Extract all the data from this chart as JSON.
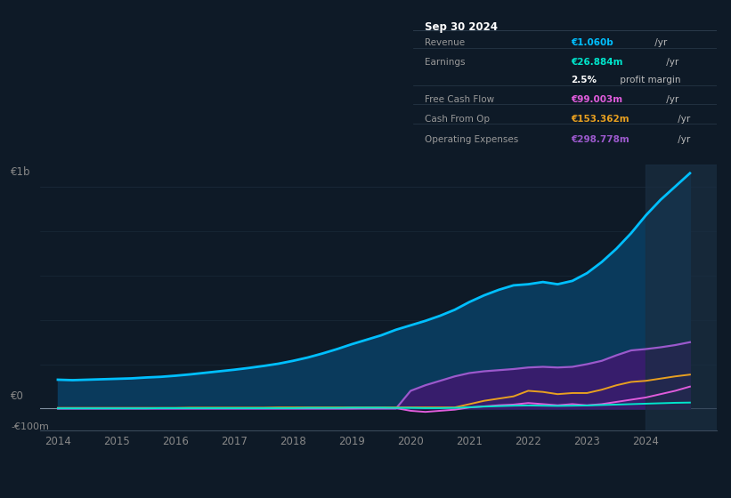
{
  "bg_color": "#0e1a27",
  "plot_bg_color": "#0e1a27",
  "title_box": {
    "date": "Sep 30 2024",
    "rows": [
      {
        "label": "Revenue",
        "value": "€1.060b",
        "unit": " /yr",
        "value_color": "#00bfff",
        "label_color": "#999999"
      },
      {
        "label": "Earnings",
        "value": "€26.884m",
        "unit": " /yr",
        "value_color": "#00e5cc",
        "label_color": "#999999"
      },
      {
        "label": "",
        "value": "2.5%",
        "unit": " profit margin",
        "value_color": "#ffffff",
        "label_color": "#999999"
      },
      {
        "label": "Free Cash Flow",
        "value": "€99.003m",
        "unit": " /yr",
        "value_color": "#e05cdc",
        "label_color": "#999999"
      },
      {
        "label": "Cash From Op",
        "value": "€153.362m",
        "unit": " /yr",
        "value_color": "#e8a020",
        "label_color": "#999999"
      },
      {
        "label": "Operating Expenses",
        "value": "€298.778m",
        "unit": " /yr",
        "value_color": "#9b59cc",
        "label_color": "#999999"
      }
    ]
  },
  "years": [
    2014.0,
    2014.25,
    2014.5,
    2014.75,
    2015.0,
    2015.25,
    2015.5,
    2015.75,
    2016.0,
    2016.25,
    2016.5,
    2016.75,
    2017.0,
    2017.25,
    2017.5,
    2017.75,
    2018.0,
    2018.25,
    2018.5,
    2018.75,
    2019.0,
    2019.25,
    2019.5,
    2019.75,
    2020.0,
    2020.25,
    2020.5,
    2020.75,
    2021.0,
    2021.25,
    2021.5,
    2021.75,
    2022.0,
    2022.25,
    2022.5,
    2022.75,
    2023.0,
    2023.25,
    2023.5,
    2023.75,
    2024.0,
    2024.25,
    2024.5,
    2024.75
  ],
  "revenue": [
    130,
    128,
    130,
    132,
    134,
    136,
    140,
    143,
    148,
    154,
    161,
    168,
    175,
    183,
    192,
    202,
    215,
    230,
    248,
    268,
    290,
    310,
    330,
    355,
    375,
    395,
    418,
    445,
    480,
    510,
    535,
    555,
    560,
    570,
    560,
    575,
    610,
    660,
    720,
    790,
    870,
    940,
    1000,
    1060
  ],
  "earnings": [
    1,
    1,
    1,
    1,
    1,
    1,
    1,
    2,
    2,
    2,
    2,
    2,
    2,
    2,
    2,
    2,
    2,
    3,
    3,
    3,
    4,
    4,
    4,
    3,
    3,
    2,
    2,
    3,
    6,
    9,
    11,
    13,
    14,
    13,
    12,
    13,
    14,
    16,
    18,
    20,
    22,
    24,
    26,
    27
  ],
  "free_cash_flow": [
    1,
    1,
    1,
    1,
    1,
    1,
    1,
    1,
    1,
    1,
    1,
    1,
    1,
    1,
    1,
    1,
    1,
    1,
    1,
    1,
    1,
    2,
    2,
    2,
    -10,
    -15,
    -10,
    -5,
    5,
    10,
    15,
    18,
    25,
    20,
    15,
    20,
    15,
    20,
    30,
    40,
    50,
    65,
    80,
    99
  ],
  "cash_from_op": [
    3,
    3,
    3,
    3,
    3,
    3,
    3,
    3,
    3,
    4,
    4,
    4,
    4,
    4,
    4,
    5,
    5,
    5,
    5,
    5,
    5,
    5,
    5,
    5,
    5,
    5,
    5,
    5,
    20,
    35,
    45,
    55,
    80,
    75,
    65,
    70,
    70,
    85,
    105,
    120,
    125,
    135,
    145,
    153
  ],
  "operating_expenses": [
    0,
    0,
    0,
    0,
    0,
    0,
    0,
    0,
    0,
    0,
    0,
    0,
    0,
    0,
    0,
    0,
    0,
    0,
    0,
    0,
    0,
    0,
    0,
    0,
    80,
    105,
    125,
    145,
    160,
    168,
    173,
    178,
    185,
    188,
    185,
    188,
    200,
    215,
    240,
    262,
    268,
    276,
    286,
    299
  ],
  "revenue_color": "#00bfff",
  "revenue_fill": "#0a3a5c",
  "earnings_color": "#00e5cc",
  "free_cash_flow_color": "#e05cdc",
  "cash_from_op_color": "#e8a020",
  "operating_expenses_color": "#9b59cc",
  "operating_expenses_fill": "#3d1a6e",
  "ylim": [
    -100,
    1100
  ],
  "ytick_positions": [
    -100,
    0,
    1000
  ],
  "ytick_labels": [
    "-€100m",
    "€0",
    "€1b"
  ],
  "xticks": [
    2014,
    2015,
    2016,
    2017,
    2018,
    2019,
    2020,
    2021,
    2022,
    2023,
    2024
  ],
  "grid_color": "#1e2e3e",
  "zero_line_color": "#8090a0",
  "legend_items": [
    {
      "label": "Revenue",
      "color": "#00bfff"
    },
    {
      "label": "Earnings",
      "color": "#00e5cc"
    },
    {
      "label": "Free Cash Flow",
      "color": "#e05cdc"
    },
    {
      "label": "Cash From Op",
      "color": "#e8a020"
    },
    {
      "label": "Operating Expenses",
      "color": "#9b59cc"
    }
  ],
  "highlight_start": 2024.0,
  "highlight_color": "#1a2e42",
  "highlight_alpha": 0.7
}
